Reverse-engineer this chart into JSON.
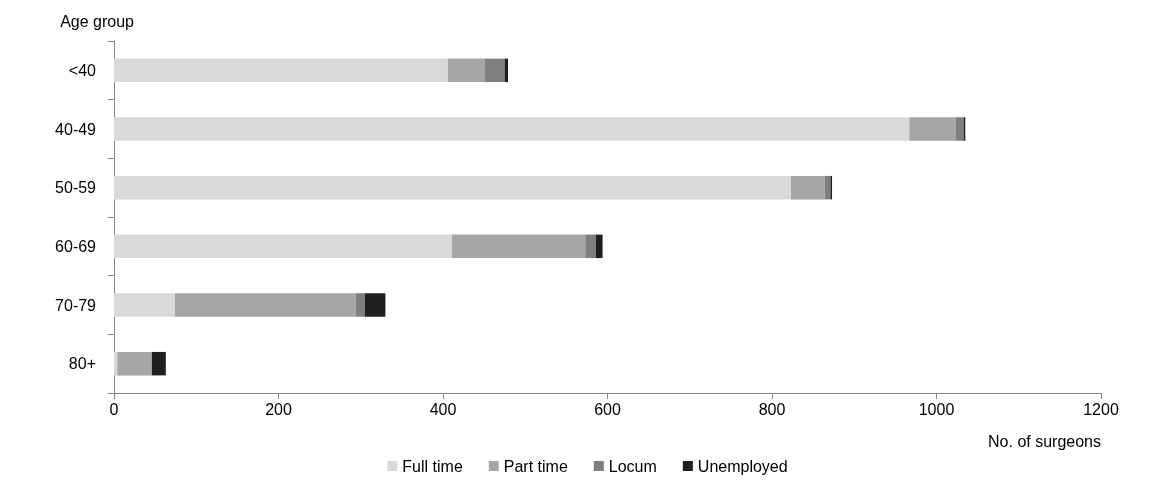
{
  "chart_data": {
    "type": "bar",
    "orientation": "horizontal",
    "stacked": true,
    "ylabel": "Age group",
    "xlabel": "No. of surgeons",
    "categories": [
      "<40",
      "40-49",
      "50-59",
      "60-69",
      "70-79",
      "80+"
    ],
    "series": [
      {
        "name": "Full time",
        "color": "#d9d9d9",
        "values": [
          406,
          967,
          823,
          411,
          74,
          4
        ]
      },
      {
        "name": "Part time",
        "color": "#a6a6a6",
        "values": [
          45,
          56,
          41,
          162,
          220,
          42
        ]
      },
      {
        "name": "Locum",
        "color": "#7f7f7f",
        "values": [
          24,
          10,
          7,
          13,
          11,
          0
        ]
      },
      {
        "name": "Unemployed",
        "color": "#1f1f1f",
        "values": [
          4,
          2,
          2,
          8,
          25,
          17
        ]
      }
    ],
    "xlim": [
      0,
      1200
    ],
    "xticks": [
      0,
      200,
      400,
      600,
      800,
      1000,
      1200
    ],
    "grid": false,
    "legend": "bottom"
  }
}
